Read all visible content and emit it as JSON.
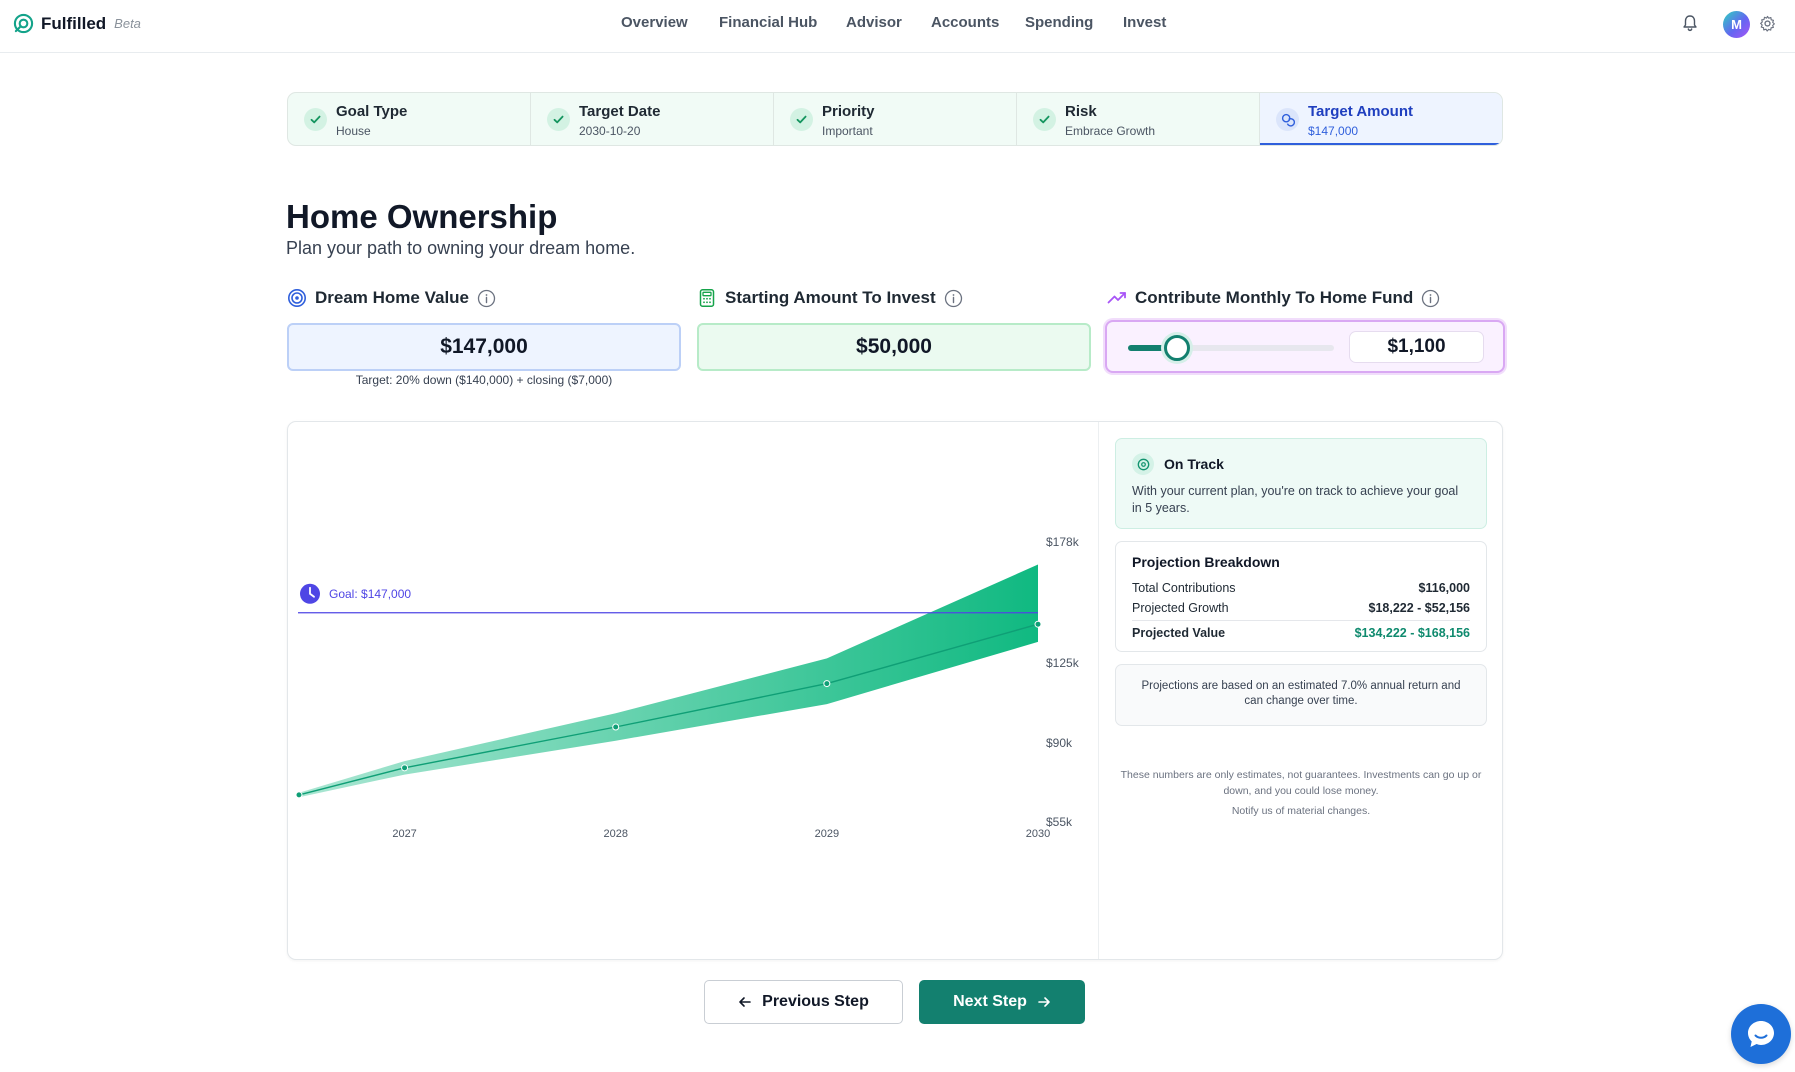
{
  "app": {
    "name": "Fulfilled",
    "badge": "Beta",
    "avatar_initial": "M"
  },
  "nav": {
    "items": [
      {
        "label": "Overview"
      },
      {
        "label": "Financial Hub"
      },
      {
        "label": "Advisor"
      },
      {
        "label": "Accounts"
      },
      {
        "label": "Spending"
      },
      {
        "label": "Invest"
      }
    ]
  },
  "stepper": [
    {
      "title": "Goal Type",
      "value": "House",
      "state": "complete"
    },
    {
      "title": "Target Date",
      "value": "2030-10-20",
      "state": "complete"
    },
    {
      "title": "Priority",
      "value": "Important",
      "state": "complete"
    },
    {
      "title": "Risk",
      "value": "Embrace Growth",
      "state": "complete"
    },
    {
      "title": "Target Amount",
      "value": "$147,000",
      "state": "active"
    }
  ],
  "page": {
    "title": "Home Ownership",
    "subtitle": "Plan your path to owning your dream home."
  },
  "fields": {
    "dream_home": {
      "label": "Dream Home Value",
      "value": "$147,000",
      "note": "Target: 20% down ($140,000) + closing ($7,000)"
    },
    "starting": {
      "label": "Starting Amount To Invest",
      "value": "$50,000"
    },
    "monthly": {
      "label": "Contribute Monthly To Home Fund",
      "value": "$1,100",
      "slider_fraction": 0.24
    }
  },
  "chart_data": {
    "type": "area",
    "x": [
      2026.5,
      2027,
      2028,
      2029,
      2030
    ],
    "series": [
      {
        "values": [
          67000,
          79000,
          97000,
          116000,
          142000
        ]
      }
    ],
    "band_low": [
      66000,
      76000,
      91000,
      107000,
      134222
    ],
    "band_high": [
      68000,
      82000,
      103000,
      127000,
      168156
    ],
    "goal": {
      "label": "Goal: $147,000",
      "value": 147000
    },
    "x_ticks": [
      "2027",
      "2028",
      "2029",
      "2030"
    ],
    "y_ticks": [
      {
        "label": "$178k",
        "value": 178000
      },
      {
        "label": "$125k",
        "value": 125000
      },
      {
        "label": "$90k",
        "value": 90000
      },
      {
        "label": "$55k",
        "value": 55000
      }
    ],
    "colors": {
      "band": "#10b981",
      "line": "#0f9f76",
      "goal": "#4f46e5"
    }
  },
  "status": {
    "title": "On Track",
    "text": "With your current plan, you're on track to achieve your goal in 5 years."
  },
  "breakdown": {
    "title": "Projection Breakdown",
    "rows": [
      {
        "label": "Total Contributions",
        "value": "$116,000"
      },
      {
        "label": "Projected Growth",
        "value": "$18,222 - $52,156"
      },
      {
        "label": "Projected Value",
        "value": "$134,222 - $168,156"
      }
    ]
  },
  "notes": {
    "projection": "Projections are based on an estimated 7.0% annual return and can change over time.",
    "disclaimer": "These numbers are only estimates, not guarantees. Investments can go up or down, and you could lose money.",
    "notify": "Notify us of material changes."
  },
  "buttons": {
    "previous": "Previous Step",
    "next": "Next Step"
  },
  "colors": {
    "accent": "#13806f",
    "goal_line": "#4f46e5",
    "active_step": "#2f5fdc"
  }
}
